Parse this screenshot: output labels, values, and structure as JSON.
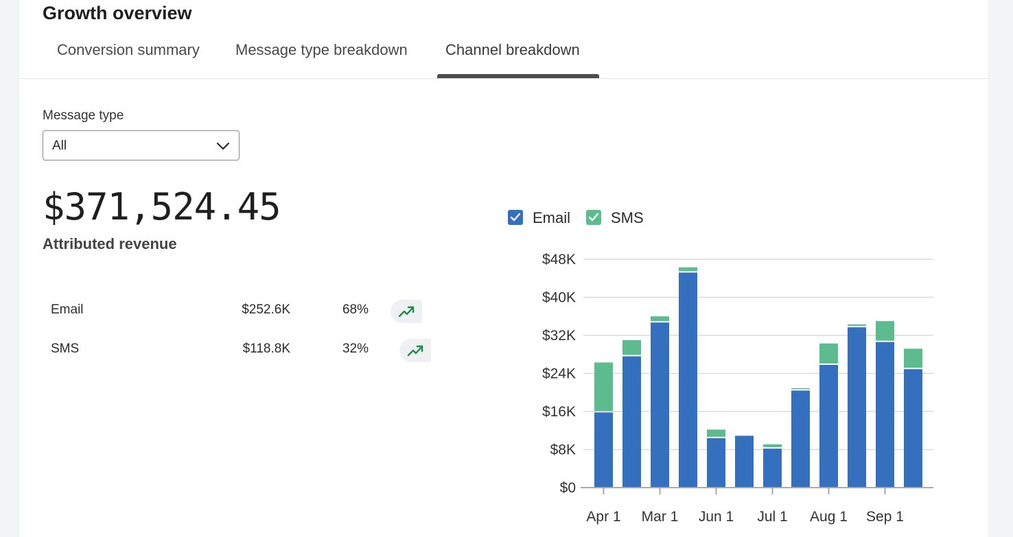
{
  "header": {
    "title": "Growth overview"
  },
  "tabs": [
    {
      "label": "Conversion summary",
      "active": false
    },
    {
      "label": "Message type breakdown",
      "active": false
    },
    {
      "label": "Channel breakdown",
      "active": true
    }
  ],
  "filter": {
    "label": "Message type",
    "selected": "All",
    "icon": "chevron-down-icon"
  },
  "summary": {
    "value": "$371,524.45",
    "label": "Attributed revenue"
  },
  "breakdown": [
    {
      "name": "Email",
      "amount": "$252.6K",
      "percent": "68%",
      "icon": "trending-up-icon"
    },
    {
      "name": "SMS",
      "amount": "$118.8K",
      "percent": "32%",
      "icon": "trending-up-icon"
    }
  ],
  "colors": {
    "email": "#3470bd",
    "sms": "#5cbb8f",
    "trend": "#1f8a4c",
    "grid": "#d9dadd",
    "axis": "#a8a9ac"
  },
  "chart_data": {
    "type": "bar",
    "stacked": true,
    "ylim": [
      0,
      48000
    ],
    "yticks": [
      {
        "value": 0,
        "label": "$0"
      },
      {
        "value": 8000,
        "label": "$8K"
      },
      {
        "value": 16000,
        "label": "$16K"
      },
      {
        "value": 24000,
        "label": "$24K"
      },
      {
        "value": 32000,
        "label": "$32K"
      },
      {
        "value": 40000,
        "label": "$40K"
      },
      {
        "value": 48000,
        "label": "$48K"
      }
    ],
    "xtick_labels": [
      "Apr 1",
      "Mar 1",
      "Jun 1",
      "Jul 1",
      "Aug 1",
      "Sep 1"
    ],
    "legend": [
      {
        "name": "Email",
        "checked": true
      },
      {
        "name": "SMS",
        "checked": true
      }
    ],
    "series": [
      {
        "name": "Email",
        "values": [
          15800,
          27600,
          34700,
          45200,
          10400,
          10900,
          8200,
          20400,
          25800,
          33700,
          30600,
          24900
        ]
      },
      {
        "name": "SMS",
        "values": [
          10500,
          3400,
          1300,
          1100,
          1800,
          0,
          900,
          500,
          4500,
          600,
          4400,
          4300
        ]
      }
    ]
  }
}
